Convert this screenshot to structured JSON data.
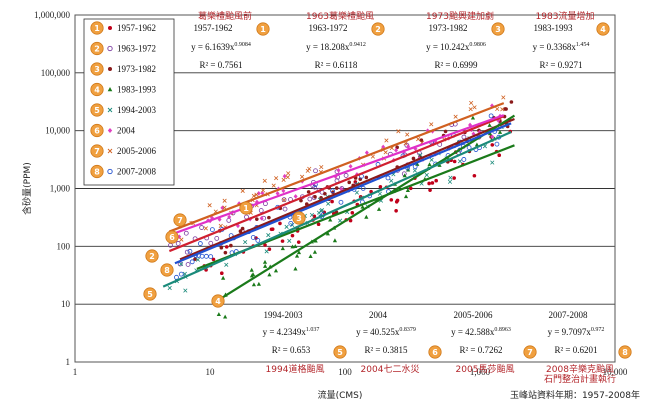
{
  "chart_data": {
    "type": "scatter",
    "xscale": "log",
    "yscale": "log",
    "xlim": [
      1,
      10000
    ],
    "ylim": [
      1,
      1000000
    ],
    "xlabel": "流量(CMS)",
    "ylabel": "含砂量(PPM)",
    "x_tick_labels": [
      "1",
      "10",
      "100",
      "1,000",
      "10,000"
    ],
    "y_tick_labels": [
      "1",
      "10",
      "100",
      "1,000",
      "10,000",
      "100,000",
      "1,000,000"
    ],
    "source_note": "玉峰站資料年期：1957-2008年",
    "legend": [
      {
        "id": "1",
        "label": "1957-1962",
        "color": "#c0001a",
        "marker": "circle"
      },
      {
        "id": "2",
        "label": "1963-1972",
        "color": "#7b3ba0",
        "marker": "circle-open"
      },
      {
        "id": "3",
        "label": "1973-1982",
        "color": "#8a1a1a",
        "marker": "circle"
      },
      {
        "id": "4",
        "label": "1983-1993",
        "color": "#1a7a1a",
        "marker": "triangle"
      },
      {
        "id": "5",
        "label": "1994-2003",
        "color": "#1a8a7a",
        "marker": "x"
      },
      {
        "id": "6",
        "label": "2004",
        "color": "#e040c0",
        "marker": "diamond"
      },
      {
        "id": "7",
        "label": "2005-2006",
        "color": "#d06020",
        "marker": "x"
      },
      {
        "id": "8",
        "label": "2007-2008",
        "color": "#2050d0",
        "marker": "circle-open"
      }
    ],
    "series": [
      {
        "id": "1",
        "name": "1957-1962",
        "event": "葛樂禮颱風前",
        "equation": "y = 6.1639x^0.9084",
        "eq_coef": "y = 6.1639x",
        "eq_exp": "0.9084",
        "r2": "R² = 0.7561",
        "a": 6.1639,
        "b": 0.9084,
        "x_range": [
          8,
          1800
        ],
        "color": "#1a7a1a"
      },
      {
        "id": "2",
        "name": "1963-1972",
        "event": "1963葛樂禮颱風",
        "equation": "y = 18.208x^0.9412",
        "eq_coef": "y = 18.208x",
        "eq_exp": "0.9412",
        "r2": "R² = 0.6118",
        "a": 18.208,
        "b": 0.9412,
        "x_range": [
          5,
          1500
        ],
        "color": "#d02030"
      },
      {
        "id": "3",
        "name": "1973-1982",
        "event": "1973颱興建加劇",
        "equation": "y = 10.242x^0.9806",
        "eq_coef": "y = 10.242x",
        "eq_exp": "0.9806",
        "r2": "R² = 0.6999",
        "a": 10.242,
        "b": 0.9806,
        "x_range": [
          6,
          1800
        ],
        "color": "#8a1a1a"
      },
      {
        "id": "4",
        "name": "1983-1993",
        "event": "1983流量增加",
        "equation": "y = 0.3368x^1.454",
        "eq_coef": "y = 0.3368x",
        "eq_exp": "1.454",
        "r2": "R² = 0.9271",
        "a": 0.3368,
        "b": 1.454,
        "x_range": [
          11,
          1800
        ],
        "color": "#1a7a1a"
      },
      {
        "id": "5",
        "name": "1994-2003",
        "event": "1994道格颱風",
        "equation": "y = 4.2349x^1.037",
        "eq_coef": "y = 4.2349x",
        "eq_exp": "1.037",
        "r2": "R² = 0.653",
        "a": 4.2349,
        "b": 1.037,
        "x_range": [
          4.5,
          1700
        ],
        "color": "#1a8a7a"
      },
      {
        "id": "6",
        "name": "2004",
        "event": "2004七二水災",
        "equation": "y = 40.525x^0.8379",
        "eq_coef": "y = 40.525x",
        "eq_exp": "0.8379",
        "r2": "R² = 0.3815",
        "a": 40.525,
        "b": 0.8379,
        "x_range": [
          5,
          1500
        ],
        "color": "#e030c8"
      },
      {
        "id": "7",
        "name": "2005-2006",
        "event": "2005馬莎颱風",
        "equation": "y = 42.588x^0.8963",
        "eq_coef": "y = 42.588x",
        "eq_exp": "0.8963",
        "r2": "R² = 0.7262",
        "a": 42.588,
        "b": 0.8963,
        "x_range": [
          5,
          1500
        ],
        "color": "#d06020"
      },
      {
        "id": "8",
        "name": "2007-2008",
        "event": "2008辛樂克颱風",
        "event2": "石門整治計畫執行",
        "equation": "y = 9.7097x^0.972",
        "eq_coef": "y = 9.7097x",
        "eq_exp": "0.972",
        "r2": "R² = 0.6201",
        "a": 9.7097,
        "b": 0.972,
        "x_range": [
          5.5,
          1700
        ],
        "color": "#2050d0"
      }
    ]
  }
}
